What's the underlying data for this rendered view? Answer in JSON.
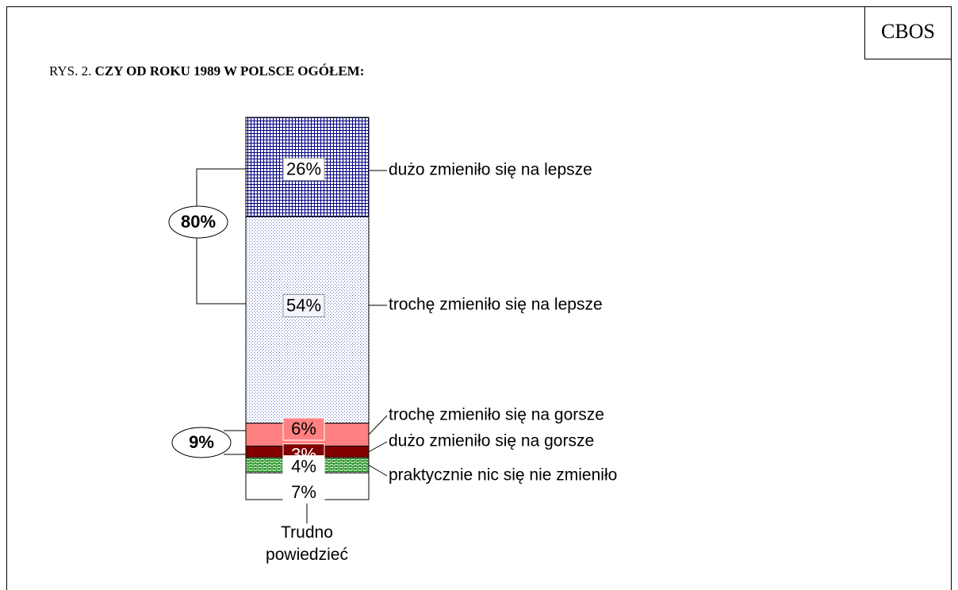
{
  "chart_data": {
    "type": "stacked_bar",
    "source": "CBOS",
    "figure_number": "RYS. 2.",
    "title": "CZY OD ROKU 1989 W POLSCE OGÓŁEM:",
    "series": [
      {
        "name": "dużo zmieniło się na lepsze",
        "color": "#000080",
        "pattern": "grid",
        "values": [
          26
        ],
        "value_labels": [
          "26%"
        ]
      },
      {
        "name": "trochę zmieniło się na lepsze",
        "color": "#6070c0",
        "pattern": "dots",
        "values": [
          54
        ],
        "value_labels": [
          "54%"
        ]
      },
      {
        "name": "trochę zmieniło się na gorsze",
        "color": "#ff8080",
        "pattern": "solid",
        "values": [
          6
        ],
        "value_labels": [
          "6%"
        ]
      },
      {
        "name": "dużo zmieniło się na gorsze",
        "color": "#800000",
        "pattern": "solid",
        "values": [
          3
        ],
        "value_labels": [
          "3%"
        ]
      },
      {
        "name": "praktycznie nic się nie zmieniło",
        "color": "#008000",
        "pattern": "bricks",
        "values": [
          4
        ],
        "value_labels": [
          "4%"
        ]
      },
      {
        "name": "Trudno powiedzieć",
        "color": "#ffffff",
        "pattern": "solid",
        "values": [
          7
        ],
        "value_labels": [
          "7%"
        ]
      }
    ],
    "annotations": [
      {
        "label": "80%"
      },
      {
        "label": "9%"
      }
    ]
  }
}
